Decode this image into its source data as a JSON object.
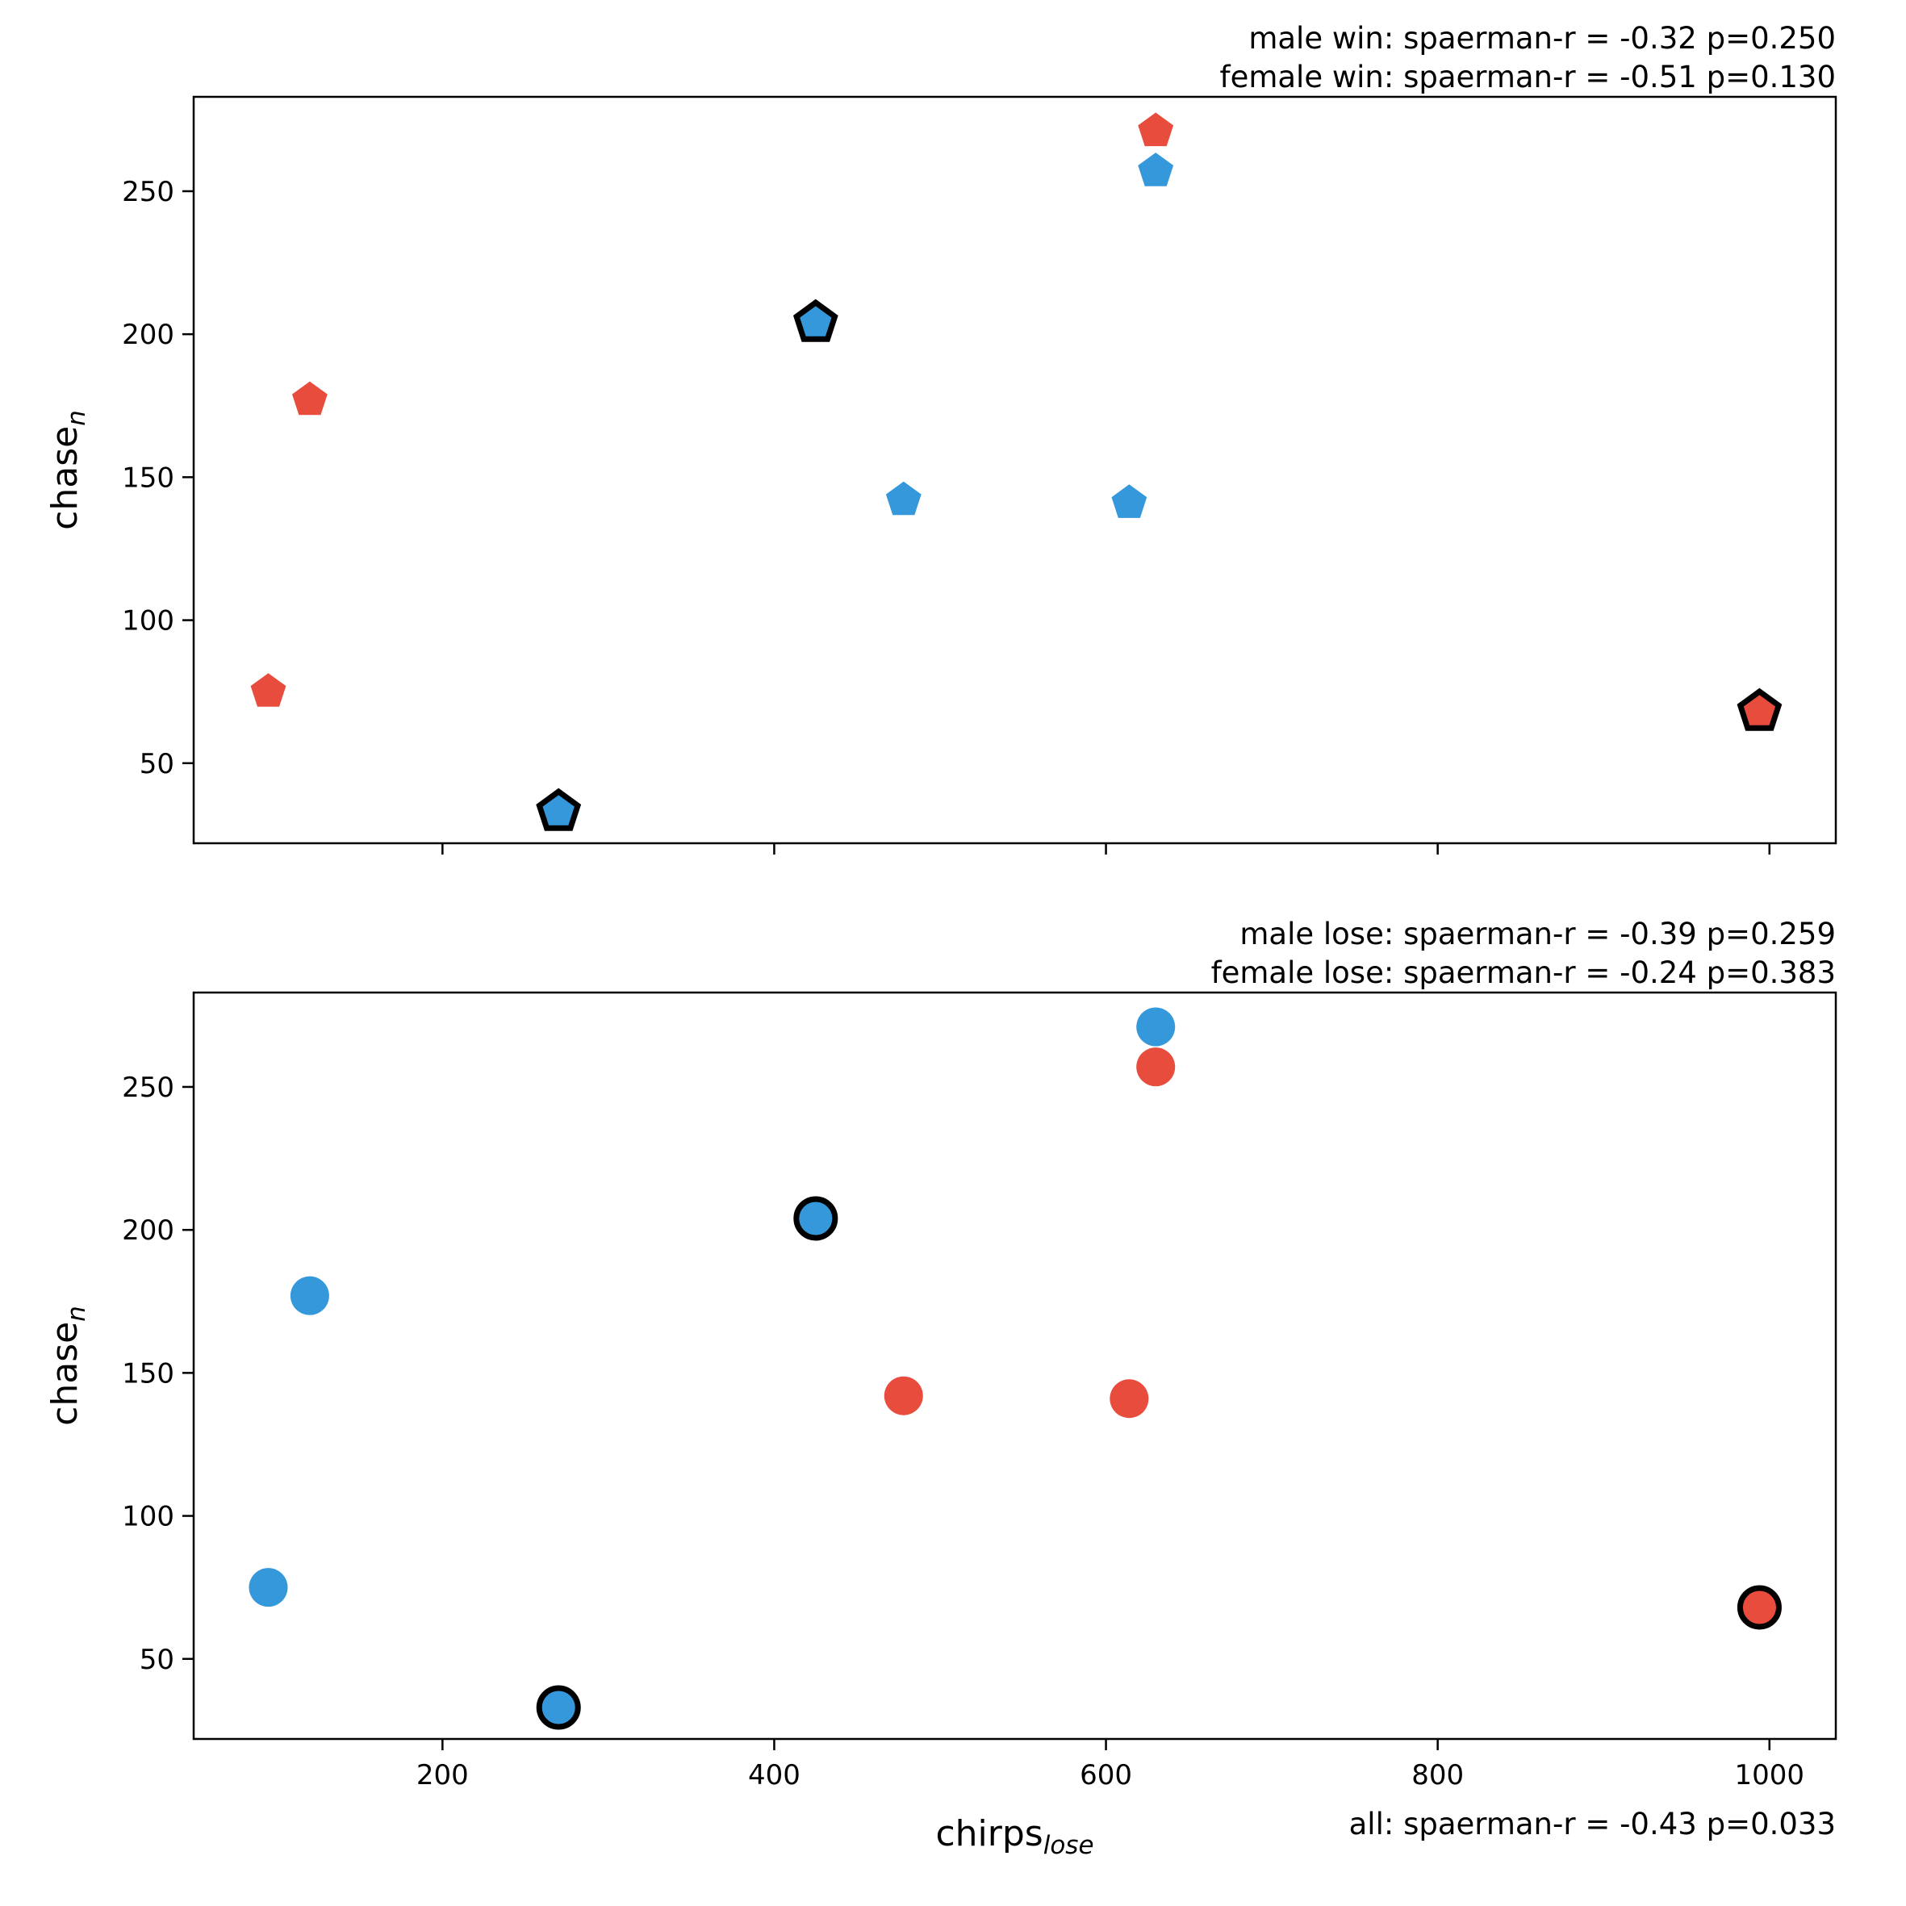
{
  "chart_data": [
    {
      "type": "scatter",
      "panel": "top",
      "marker": "pentagon",
      "annotations": [
        "male win: spaerman-r = -0.32 p=0.250",
        "female win: spaerman-r = -0.51 p=0.130"
      ],
      "ylabel": {
        "base": "chase",
        "sub": "n"
      },
      "xlabel": {
        "base": "",
        "sub": ""
      },
      "xlim": [
        50,
        1040
      ],
      "ylim": [
        22,
        283
      ],
      "xticks": [
        200,
        400,
        600,
        800,
        1000
      ],
      "show_xtick_labels": false,
      "yticks": [
        50,
        100,
        150,
        200,
        250
      ],
      "grid": false,
      "points": [
        {
          "x": 95,
          "y": 75,
          "color": "#e74c3c",
          "outlined": false
        },
        {
          "x": 120,
          "y": 177,
          "color": "#e74c3c",
          "outlined": false
        },
        {
          "x": 270,
          "y": 33,
          "color": "#3498db",
          "outlined": true
        },
        {
          "x": 425,
          "y": 204,
          "color": "#3498db",
          "outlined": true
        },
        {
          "x": 478,
          "y": 142,
          "color": "#3498db",
          "outlined": false
        },
        {
          "x": 614,
          "y": 141,
          "color": "#3498db",
          "outlined": false
        },
        {
          "x": 630,
          "y": 257,
          "color": "#3498db",
          "outlined": false
        },
        {
          "x": 630,
          "y": 271,
          "color": "#e74c3c",
          "outlined": false
        },
        {
          "x": 994,
          "y": 68,
          "color": "#e74c3c",
          "outlined": true
        }
      ]
    },
    {
      "type": "scatter",
      "panel": "bottom",
      "marker": "circle",
      "annotations": [
        "male lose: spaerman-r = -0.39 p=0.259",
        "female lose: spaerman-r = -0.24 p=0.383"
      ],
      "ylabel": {
        "base": "chase",
        "sub": "n"
      },
      "xlabel": {
        "base": "chirps",
        "sub": "lose"
      },
      "xlim": [
        50,
        1040
      ],
      "ylim": [
        22,
        283
      ],
      "xticks": [
        200,
        400,
        600,
        800,
        1000
      ],
      "show_xtick_labels": true,
      "yticks": [
        50,
        100,
        150,
        200,
        250
      ],
      "grid": false,
      "footer": "all: spaerman-r = -0.43 p=0.033",
      "points": [
        {
          "x": 95,
          "y": 75,
          "color": "#3498db",
          "outlined": false
        },
        {
          "x": 120,
          "y": 177,
          "color": "#3498db",
          "outlined": false
        },
        {
          "x": 270,
          "y": 33,
          "color": "#3498db",
          "outlined": true
        },
        {
          "x": 425,
          "y": 204,
          "color": "#3498db",
          "outlined": true
        },
        {
          "x": 478,
          "y": 142,
          "color": "#e74c3c",
          "outlined": false
        },
        {
          "x": 614,
          "y": 141,
          "color": "#e74c3c",
          "outlined": false
        },
        {
          "x": 630,
          "y": 257,
          "color": "#e74c3c",
          "outlined": false
        },
        {
          "x": 630,
          "y": 271,
          "color": "#3498db",
          "outlined": false
        },
        {
          "x": 994,
          "y": 68,
          "color": "#e74c3c",
          "outlined": true
        }
      ]
    }
  ]
}
